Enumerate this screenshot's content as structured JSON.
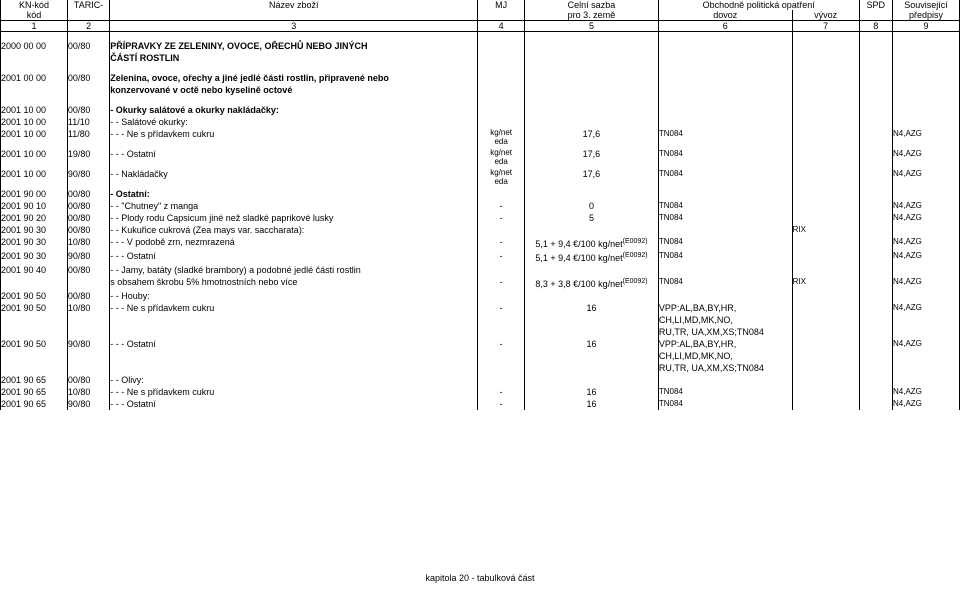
{
  "header": {
    "cols": [
      {
        "l1": "KN-kód",
        "l2": "kód",
        "num": "1"
      },
      {
        "l1": "TARIC-",
        "l2": "",
        "num": "2"
      },
      {
        "l1": "Název zboží",
        "l2": "",
        "num": "3"
      },
      {
        "l1": "MJ",
        "l2": "",
        "num": "4"
      },
      {
        "l1": "Celní sazba",
        "l2": "pro 3. země",
        "num": "5"
      },
      {
        "l1": "Obchodně politická opatření",
        "l2": "dovoz",
        "num": "6"
      },
      {
        "l1": "",
        "l2": "vývoz",
        "num": "7"
      },
      {
        "l1": "SPD",
        "l2": "",
        "num": "8"
      },
      {
        "l1": "Související",
        "l2": "předpisy",
        "num": "9"
      }
    ]
  },
  "rows": [
    {
      "type": "blank"
    },
    {
      "type": "data",
      "kn": "2000 00 00",
      "tc": "00/80",
      "desc": "PŘÍPRAVKY ZE ZELENINY, OVOCE, OŘECHŮ NEBO JINÝCH",
      "bold": true
    },
    {
      "type": "data",
      "desc": "ČÁSTÍ ROSTLIN",
      "bold": true
    },
    {
      "type": "blank"
    },
    {
      "type": "data",
      "kn": "2001 00 00",
      "tc": "00/80",
      "desc": "Zelenina, ovoce, ořechy a jiné jedlé části rostlin, připravené nebo",
      "bold": true
    },
    {
      "type": "data",
      "desc": "konzervované v octě nebo kyselině octové",
      "bold": true
    },
    {
      "type": "blank"
    },
    {
      "type": "data",
      "kn": "2001 10 00",
      "tc": "00/80",
      "desc": "- Okurky salátové a okurky nakládačky:",
      "bold": true
    },
    {
      "type": "data",
      "kn": "2001 10 00",
      "tc": "11/10",
      "desc": "- - Salátové okurky:"
    },
    {
      "type": "data",
      "kn": "2001 10 00",
      "tc": "11/80",
      "desc": "- - - Ne s přídavkem cukru",
      "mj": "kg/net\neda",
      "sazba": "17,6",
      "dovoz": "TN084",
      "pred": "N4,AZG"
    },
    {
      "type": "data",
      "kn": "2001 10 00",
      "tc": "19/80",
      "desc": "- - - Ostatní",
      "mj": "kg/net\neda",
      "sazba": "17,6",
      "dovoz": "TN084",
      "pred": "N4,AZG"
    },
    {
      "type": "data",
      "kn": "2001 10 00",
      "tc": "90/80",
      "desc": "- - Nakládačky",
      "mj": "kg/net\neda",
      "sazba": "17,6",
      "dovoz": "TN084",
      "pred": "N4,AZG"
    },
    {
      "type": "data",
      "kn": "2001 90 00",
      "tc": "00/80",
      "desc": "- Ostatní:",
      "bold": true
    },
    {
      "type": "data",
      "kn": "2001 90 10",
      "tc": "00/80",
      "desc": "- - \"Chutney\" z manga",
      "mj": "-",
      "sazba": "0",
      "dovoz": "TN084",
      "pred": "N4,AZG"
    },
    {
      "type": "data",
      "kn": "2001 90 20",
      "tc": "00/80",
      "desc": "- - Plody rodu Capsicum jiné než sladké paprikové lusky",
      "mj": "-",
      "sazba": "5",
      "dovoz": "TN084",
      "pred": "N4,AZG"
    },
    {
      "type": "data",
      "kn": "2001 90 30",
      "tc": "00/80",
      "desc": "- - Kukuřice cukrová (Zea mays var. saccharata):",
      "vyvoz": "RIX"
    },
    {
      "type": "data",
      "kn": "2001 90 30",
      "tc": "10/80",
      "desc": "- - - V podobě zrn, nezmrazená",
      "mj": "-",
      "sazba": "5,1 + 9,4 €/100 kg/net(E0092)",
      "dovoz": "TN084",
      "pred": "N4,AZG"
    },
    {
      "type": "data",
      "kn": "2001 90 30",
      "tc": "90/80",
      "desc": "- - - Ostatní",
      "mj": "-",
      "sazba": "5,1 + 9,4 €/100 kg/net(E0092)",
      "dovoz": "TN084",
      "pred": "N4,AZG"
    },
    {
      "type": "data",
      "kn": "2001 90 40",
      "tc": "00/80",
      "desc": "- - Jamy, batáty (sladké brambory) a podobné jedlé části rostlin"
    },
    {
      "type": "data",
      "desc": "     s obsahem škrobu 5% hmotnostních nebo více",
      "mj": "-",
      "sazba": "8,3 + 3,8 €/100 kg/net(E0092)",
      "dovoz": "TN084",
      "vyvoz": "RIX",
      "pred": "N4,AZG"
    },
    {
      "type": "data",
      "kn": "2001 90 50",
      "tc": "00/80",
      "desc": "- - Houby:"
    },
    {
      "type": "data",
      "kn": "2001 90 50",
      "tc": "10/80",
      "desc": "- - - Ne s přídavkem cukru",
      "mj": "-",
      "sazba": "16",
      "dovoz_multi": "VPP:AL,BA,BY,HR,\nCH,LI,MD,MK,NO,\nRU,TR, UA,XM,XS;TN084",
      "pred": "N4,AZG"
    },
    {
      "type": "data",
      "kn": "2001 90 50",
      "tc": "90/80",
      "desc": "- - - Ostatní",
      "mj": "-",
      "sazba": "16",
      "dovoz_multi": "VPP:AL,BA,BY,HR,\nCH,LI,MD,MK,NO,\nRU,TR, UA,XM,XS;TN084",
      "pred": "N4,AZG"
    },
    {
      "type": "data",
      "kn": "2001 90 65",
      "tc": "00/80",
      "desc": "- - Olivy:"
    },
    {
      "type": "data",
      "kn": "2001 90 65",
      "tc": "10/80",
      "desc": "- - - Ne s přídavkem cukru",
      "mj": "-",
      "sazba": "16",
      "dovoz": "TN084",
      "pred": "N4,AZG"
    },
    {
      "type": "data",
      "kn": "2001 90 65",
      "tc": "90/80",
      "desc": "- - - Ostatní",
      "mj": "-",
      "sazba": "16",
      "dovoz": "TN084",
      "pred": "N4,AZG"
    }
  ],
  "footer": "kapitola 20 - tabulková část"
}
